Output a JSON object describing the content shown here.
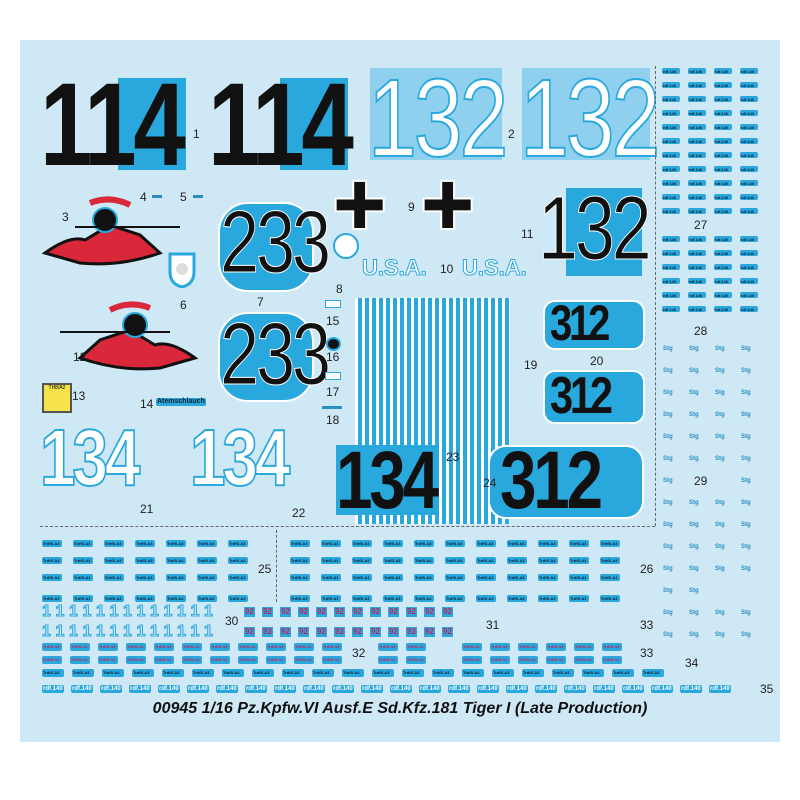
{
  "sheet": {
    "title": "00945 1/16 Pz.Kpfw.VI Ausf.E Sd.Kfz.181 Tiger I (Late Production)",
    "background": "#cfe8f5",
    "accent": "#29a8dd",
    "red": "#d8283a"
  },
  "decals": {
    "d114": "114",
    "d132": "132",
    "d233": "233",
    "d312": "312",
    "d134": "134",
    "usa": "U.S.A.",
    "cross": "✚",
    "plate13": "TH8/A2",
    "atem": "Atemschlauch",
    "rdf": "rdf.140",
    "one": "1",
    "n92": "92",
    "stg": "Stg",
    "kfz": "TrdfS.A3"
  },
  "labels": [
    "1",
    "2",
    "3",
    "4",
    "5",
    "6",
    "7",
    "8",
    "9",
    "10",
    "11",
    "12",
    "13",
    "14",
    "15",
    "16",
    "17",
    "18",
    "19",
    "20",
    "21",
    "22",
    "23",
    "24",
    "25",
    "26",
    "27",
    "28",
    "29",
    "30",
    "31",
    "32",
    "33",
    "33",
    "34",
    "35"
  ]
}
